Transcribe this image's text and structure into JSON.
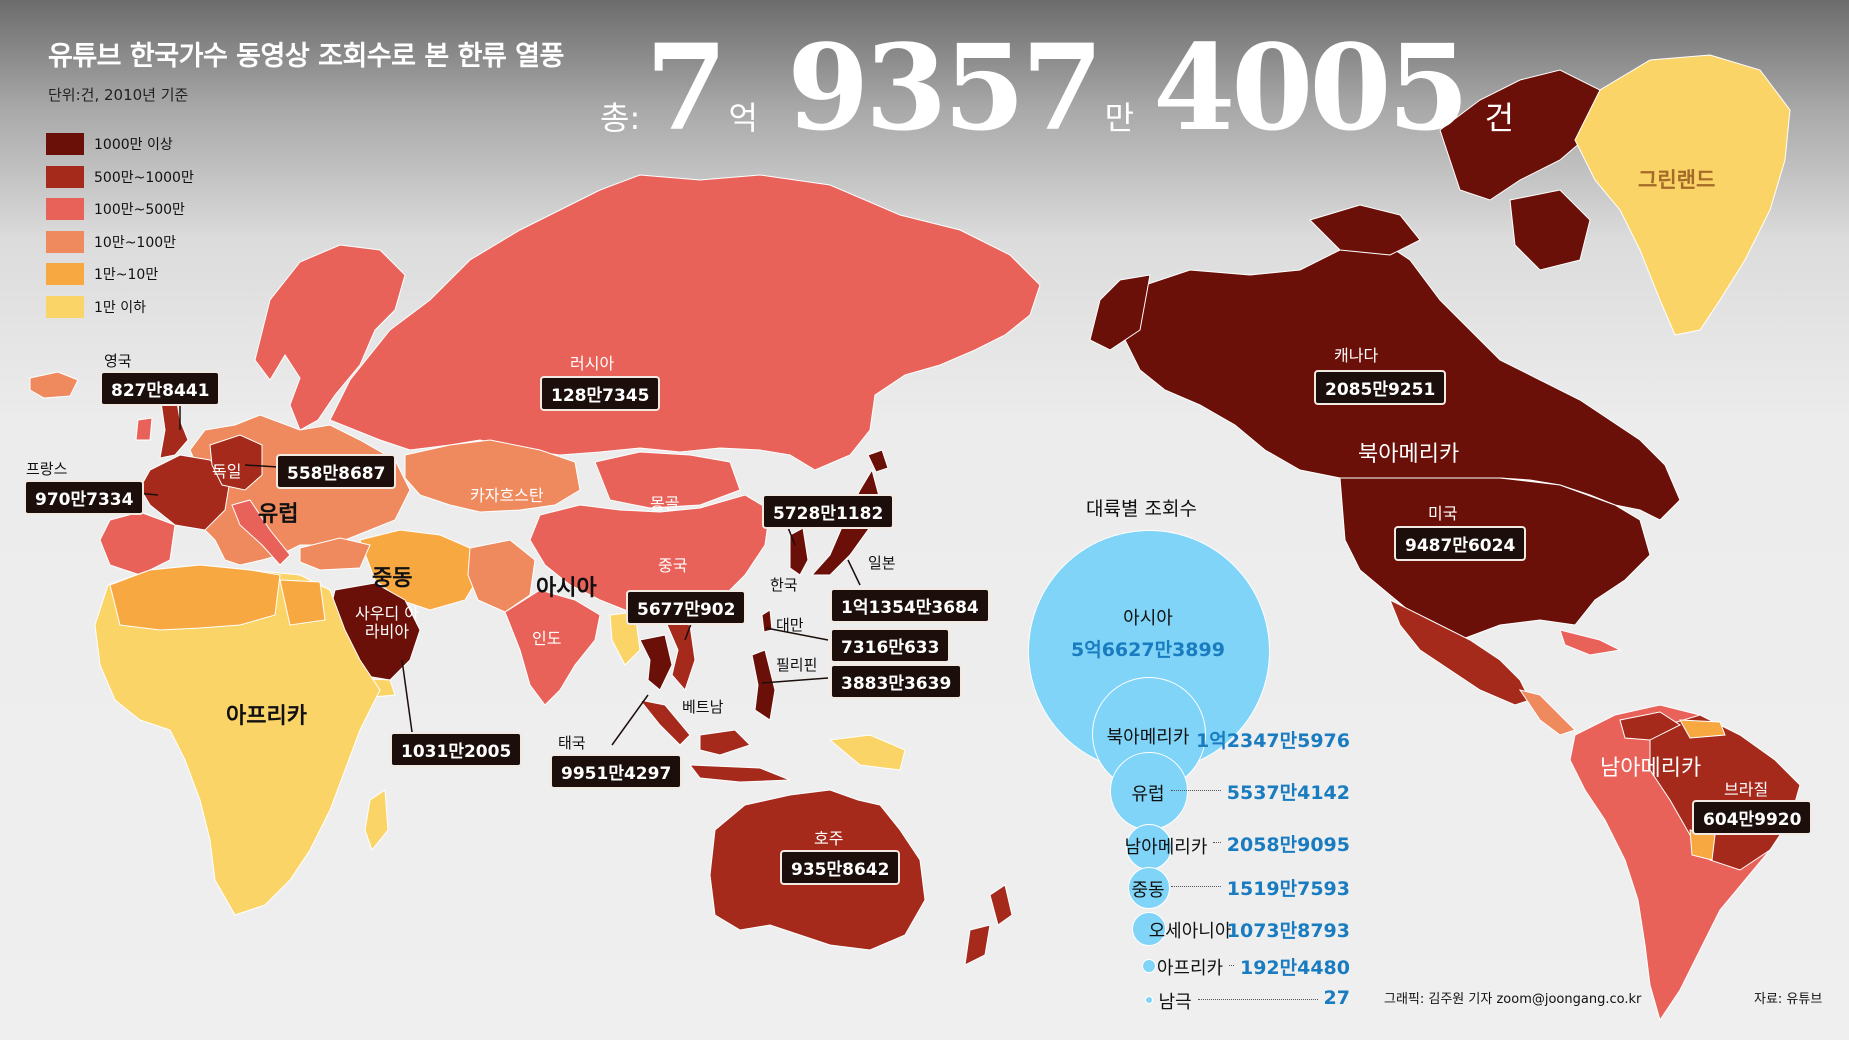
{
  "title": "유튜브 한국가수 동영상 조회수로 본 한류 열풍",
  "unit_note": "단위:건, 2010년 기준",
  "total": {
    "prefix": "총:",
    "n1": "7",
    "u1": "억",
    "n2": "9357",
    "u2": "만",
    "n3": "4005",
    "u3": "건"
  },
  "colors": {
    "c1": "#6b1008",
    "c2": "#a52a1c",
    "c3": "#e9625a",
    "c4": "#ef8a5e",
    "c5": "#f7a841",
    "c6": "#fbd468",
    "bubble": "#7fd4f8",
    "label_box": "#1b0e0b",
    "value_blue": "#1a7cc0"
  },
  "legend": [
    {
      "label": "1000만 이상",
      "color": "#6b1008"
    },
    {
      "label": "500만~1000만",
      "color": "#a52a1c"
    },
    {
      "label": "100만~500만",
      "color": "#e9625a"
    },
    {
      "label": "10만~100만",
      "color": "#ef8a5e"
    },
    {
      "label": "1만~10만",
      "color": "#f7a841"
    },
    {
      "label": "1만 이하",
      "color": "#fbd468"
    }
  ],
  "countries": {
    "uk": {
      "name": "영국",
      "value": "827만8441"
    },
    "france": {
      "name": "프랑스",
      "value": "970만7334"
    },
    "germany": {
      "name": "독일",
      "value": "558만8687"
    },
    "russia": {
      "name": "러시아",
      "value": "128만7345"
    },
    "kazakhstan": {
      "name": "카자흐스탄"
    },
    "mongolia": {
      "name": "몽골"
    },
    "china": {
      "name": "중국",
      "value": "5677만902"
    },
    "korea": {
      "name": "한국",
      "value": "5728만1182"
    },
    "japan": {
      "name": "일본",
      "value": "1억1354만3684"
    },
    "taiwan": {
      "name": "대만",
      "value": "7316만633"
    },
    "philippines": {
      "name": "필리핀",
      "value": "3883만3639"
    },
    "vietnam": {
      "name": "베트남"
    },
    "thailand": {
      "name": "태국",
      "value": "9951만4297"
    },
    "india": {
      "name": "인도"
    },
    "saudi": {
      "name": "사우디 아라비아",
      "value": "1031만2005"
    },
    "australia": {
      "name": "호주",
      "value": "935만8642"
    },
    "canada": {
      "name": "캐나다",
      "value": "2085만9251"
    },
    "usa": {
      "name": "미국",
      "value": "9487만6024"
    },
    "brazil": {
      "name": "브라질",
      "value": "604만9920"
    },
    "greenland": {
      "name": "그린랜드"
    }
  },
  "continent_labels": {
    "europe": "유럽",
    "middle_east": "중동",
    "asia": "아시아",
    "africa": "아프리카",
    "north_america": "북아메리카",
    "south_america": "남아메리카"
  },
  "continent_chart": {
    "title": "대륙별 조회수",
    "items": [
      {
        "name": "아시아",
        "value": "5억6627만3899"
      },
      {
        "name": "북아메리카",
        "value": "1억2347만5976"
      },
      {
        "name": "유럽",
        "value": "5537만4142"
      },
      {
        "name": "남아메리카",
        "value": "2058만9095"
      },
      {
        "name": "중동",
        "value": "1519만7593"
      },
      {
        "name": "오세아니아",
        "value": "1073만8793"
      },
      {
        "name": "아프리카",
        "value": "192만4480"
      },
      {
        "name": "남극",
        "value": "27"
      }
    ]
  },
  "credit": "그래픽: 김주원 기자 zoom@joongang.co.kr",
  "source": "자료: 유튜브"
}
